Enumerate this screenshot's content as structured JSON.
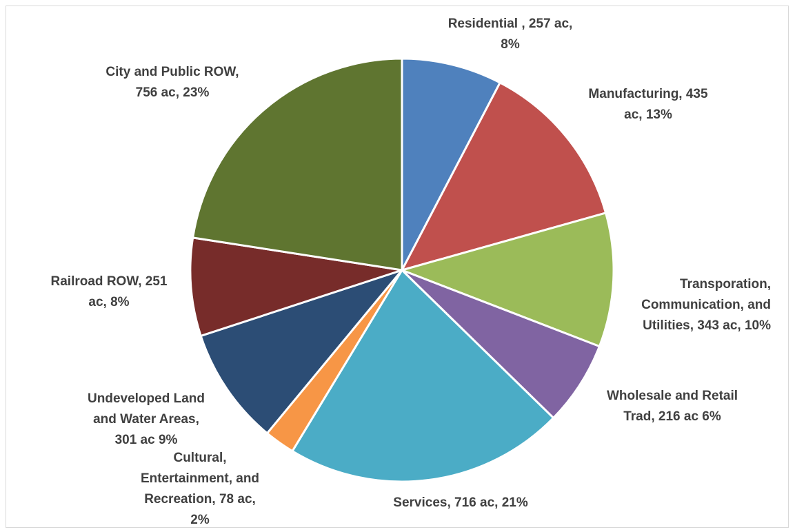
{
  "chart_data": {
    "type": "pie",
    "slices": [
      {
        "label_lines": [
          "Residential , 257 ac,",
          "8%"
        ],
        "value": 257,
        "color": "#4f81bd"
      },
      {
        "label_lines": [
          "Manufacturing, 435",
          "ac, 13%"
        ],
        "value": 435,
        "color": "#c0504d"
      },
      {
        "label_lines": [
          "Transporation,",
          "Communication, and",
          "Utilities, 343 ac, 10%"
        ],
        "value": 343,
        "color": "#9bbb59"
      },
      {
        "label_lines": [
          "Wholesale and Retail",
          "Trad, 216 ac 6%"
        ],
        "value": 216,
        "color": "#8064a2"
      },
      {
        "label_lines": [
          "Services, 716 ac, 21%"
        ],
        "value": 716,
        "color": "#4bacc6"
      },
      {
        "label_lines": [
          "Cultural,",
          "Entertainment, and",
          "Recreation, 78 ac,",
          "2%"
        ],
        "value": 78,
        "color": "#f79646"
      },
      {
        "label_lines": [
          "Undeveloped Land",
          "and Water Areas,",
          "301 ac 9%"
        ],
        "value": 301,
        "color": "#2c4d75"
      },
      {
        "label_lines": [
          "Railroad ROW, 251",
          "ac, 8%"
        ],
        "value": 251,
        "color": "#772c2a"
      },
      {
        "label_lines": [
          "City and Public ROW,",
          "756 ac, 23%"
        ],
        "value": 756,
        "color": "#5f7530"
      }
    ],
    "start_angle_deg": 0,
    "direction": "clockwise"
  }
}
